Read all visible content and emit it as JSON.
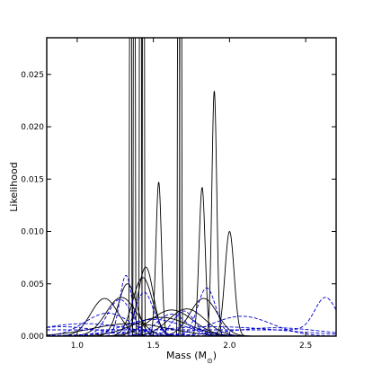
{
  "chart_data": {
    "type": "line",
    "xlabel": "Mass (M",
    "xlabel_sub": "⊙",
    "xlabel_suffix": ")",
    "ylabel": "Likelihood",
    "xlim": [
      0.8,
      2.7
    ],
    "ylim": [
      0.0,
      0.0285
    ],
    "xticks": [
      1.0,
      1.5,
      2.0,
      2.5
    ],
    "xtick_labels": [
      "1.0",
      "1.5",
      "2.0",
      "2.5"
    ],
    "yticks": [
      0.0,
      0.005,
      0.01,
      0.015,
      0.02,
      0.025
    ],
    "ytick_labels": [
      "0.000",
      "0.005",
      "0.010",
      "0.015",
      "0.020",
      "0.025"
    ],
    "grid": false,
    "series": [
      {
        "style": "solid",
        "color": "#000000",
        "peaks": [
          {
            "mu": 1.35,
            "sigma": 0.0035,
            "amp": 0.2
          }
        ]
      },
      {
        "style": "solid",
        "color": "#000000",
        "peaks": [
          {
            "mu": 1.375,
            "sigma": 0.0035,
            "amp": 0.2
          }
        ]
      },
      {
        "style": "solid",
        "color": "#000000",
        "peaks": [
          {
            "mu": 1.415,
            "sigma": 0.0035,
            "amp": 0.2
          }
        ]
      },
      {
        "style": "solid",
        "color": "#000000",
        "peaks": [
          {
            "mu": 1.435,
            "sigma": 0.0035,
            "amp": 0.2
          }
        ]
      },
      {
        "style": "solid",
        "color": "#000000",
        "peaks": [
          {
            "mu": 1.665,
            "sigma": 0.0035,
            "amp": 0.2
          }
        ]
      },
      {
        "style": "solid",
        "color": "#000000",
        "peaks": [
          {
            "mu": 1.68,
            "sigma": 0.0035,
            "amp": 0.2
          }
        ]
      },
      {
        "style": "solid",
        "color": "#000000",
        "peaks": [
          {
            "mu": 1.9,
            "sigma": 0.016,
            "amp": 0.0234
          }
        ]
      },
      {
        "style": "solid",
        "color": "#000000",
        "peaks": [
          {
            "mu": 1.535,
            "sigma": 0.018,
            "amp": 0.0147
          }
        ]
      },
      {
        "style": "solid",
        "color": "#000000",
        "peaks": [
          {
            "mu": 1.82,
            "sigma": 0.02,
            "amp": 0.0142
          }
        ]
      },
      {
        "style": "solid",
        "color": "#000000",
        "peaks": [
          {
            "mu": 2.0,
            "sigma": 0.03,
            "amp": 0.01
          }
        ]
      },
      {
        "style": "solid",
        "color": "#000000",
        "peaks": [
          {
            "mu": 1.45,
            "sigma": 0.05,
            "amp": 0.0066
          }
        ]
      },
      {
        "style": "solid",
        "color": "#000000",
        "peaks": [
          {
            "mu": 1.43,
            "sigma": 0.065,
            "amp": 0.0056
          }
        ]
      },
      {
        "style": "solid",
        "color": "#000000",
        "peaks": [
          {
            "mu": 1.33,
            "sigma": 0.06,
            "amp": 0.005
          }
        ]
      },
      {
        "style": "solid",
        "color": "#000000",
        "peaks": [
          {
            "mu": 1.18,
            "sigma": 0.09,
            "amp": 0.0036
          }
        ]
      },
      {
        "style": "solid",
        "color": "#000000",
        "peaks": [
          {
            "mu": 1.29,
            "sigma": 0.1,
            "amp": 0.0037
          }
        ]
      },
      {
        "style": "solid",
        "color": "#000000",
        "peaks": [
          {
            "mu": 1.83,
            "sigma": 0.09,
            "amp": 0.0036
          }
        ]
      },
      {
        "style": "solid",
        "color": "#000000",
        "peaks": [
          {
            "mu": 1.72,
            "sigma": 0.12,
            "amp": 0.0026
          }
        ]
      },
      {
        "style": "solid",
        "color": "#000000",
        "peaks": [
          {
            "mu": 1.62,
            "sigma": 0.14,
            "amp": 0.0025
          }
        ]
      },
      {
        "style": "solid",
        "color": "#000000",
        "peaks": [
          {
            "mu": 1.55,
            "sigma": 0.18,
            "amp": 0.0018
          }
        ]
      },
      {
        "style": "solid",
        "color": "#000000",
        "peaks": [
          {
            "mu": 1.35,
            "sigma": 0.25,
            "amp": 0.0012
          }
        ]
      },
      {
        "style": "dashed",
        "color": "#0000cc",
        "peaks": [
          {
            "mu": 1.32,
            "sigma": 0.04,
            "amp": 0.0058
          }
        ]
      },
      {
        "style": "dashed",
        "color": "#0000cc",
        "peaks": [
          {
            "mu": 1.44,
            "sigma": 0.06,
            "amp": 0.0042
          }
        ]
      },
      {
        "style": "dashed",
        "color": "#0000cc",
        "peaks": [
          {
            "mu": 1.28,
            "sigma": 0.08,
            "amp": 0.0035
          }
        ]
      },
      {
        "style": "dashed",
        "color": "#0000cc",
        "peaks": [
          {
            "mu": 1.85,
            "sigma": 0.06,
            "amp": 0.0046
          }
        ]
      },
      {
        "style": "dashed",
        "color": "#0000cc",
        "peaks": [
          {
            "mu": 1.2,
            "sigma": 0.15,
            "amp": 0.0022
          }
        ]
      },
      {
        "style": "dashed",
        "color": "#0000cc",
        "peaks": [
          {
            "mu": 1.7,
            "sigma": 0.07,
            "amp": 0.0024
          }
        ]
      },
      {
        "style": "dashed",
        "color": "#0000cc",
        "peaks": [
          {
            "mu": 1.62,
            "sigma": 0.1,
            "amp": 0.0021
          }
        ]
      },
      {
        "style": "dashed",
        "color": "#0000cc",
        "peaks": [
          {
            "mu": 2.08,
            "sigma": 0.2,
            "amp": 0.0019
          }
        ]
      },
      {
        "style": "dashed",
        "color": "#0000cc",
        "peaks": [
          {
            "mu": 2.63,
            "sigma": 0.07,
            "amp": 0.0031
          }
        ],
        "baseline": 0.0006
      },
      {
        "style": "dashed",
        "color": "#0000cc",
        "peaks": [
          {
            "mu": 1.05,
            "sigma": 0.3,
            "amp": 0.0012
          }
        ]
      },
      {
        "style": "dashed",
        "color": "#0000cc",
        "peaks": [
          {
            "mu": 1.9,
            "sigma": 0.45,
            "amp": 0.0009
          }
        ]
      },
      {
        "style": "dashed",
        "color": "#0000cc",
        "peaks": [
          {
            "mu": 1.5,
            "sigma": 0.2,
            "amp": 0.0016
          }
        ]
      },
      {
        "style": "dashed",
        "color": "#0000cc",
        "peaks": [
          {
            "mu": 2.3,
            "sigma": 0.3,
            "amp": 0.0008
          }
        ]
      },
      {
        "style": "dashed",
        "color": "#0000cc",
        "peaks": [
          {
            "mu": 0.9,
            "sigma": 0.25,
            "amp": 0.0009
          }
        ]
      }
    ]
  }
}
